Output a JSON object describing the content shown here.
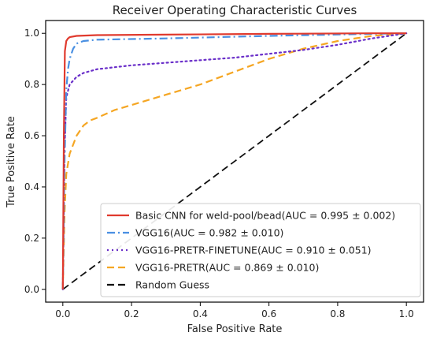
{
  "chart_data": {
    "type": "line",
    "title": "Receiver Operating Characteristic Curves",
    "xlabel": "False Positive Rate",
    "ylabel": "True Positive Rate",
    "xlim": [
      -0.05,
      1.05
    ],
    "ylim": [
      -0.05,
      1.05
    ],
    "xticks": [
      "0.0",
      "0.2",
      "0.4",
      "0.6",
      "0.8",
      "1.0"
    ],
    "yticks": [
      "0.0",
      "0.2",
      "0.4",
      "0.6",
      "0.8",
      "1.0"
    ],
    "legend_position": "lower-right",
    "series": [
      {
        "name": "Basic CNN for weld-pool/bead(AUC = 0.995 ± 0.002)",
        "color": "#e03a2e",
        "style": "solid",
        "x": [
          0,
          0.003,
          0.006,
          0.01,
          0.015,
          0.02,
          0.04,
          0.1,
          0.3,
          0.6,
          0.9,
          1.0
        ],
        "y": [
          0,
          0.6,
          0.93,
          0.97,
          0.98,
          0.985,
          0.99,
          0.993,
          0.995,
          0.998,
          1.0,
          1.0
        ]
      },
      {
        "name": "VGG16(AUC = 0.982 ± 0.010)",
        "color": "#4a90e2",
        "style": "dashdot",
        "x": [
          0,
          0.005,
          0.01,
          0.015,
          0.02,
          0.03,
          0.04,
          0.06,
          0.1,
          0.3,
          0.6,
          0.9,
          1.0
        ],
        "y": [
          0,
          0.5,
          0.78,
          0.86,
          0.9,
          0.94,
          0.96,
          0.97,
          0.975,
          0.98,
          0.99,
          0.998,
          1.0
        ]
      },
      {
        "name": "VGG16-PRETR-FINETUNE(AUC = 0.910 ± 0.051)",
        "color": "#6a2fc9",
        "style": "dotted",
        "x": [
          0,
          0.005,
          0.01,
          0.02,
          0.04,
          0.06,
          0.1,
          0.2,
          0.3,
          0.4,
          0.5,
          0.6,
          0.7,
          0.8,
          0.9,
          1.0
        ],
        "y": [
          0,
          0.55,
          0.75,
          0.8,
          0.83,
          0.845,
          0.86,
          0.875,
          0.885,
          0.895,
          0.905,
          0.92,
          0.935,
          0.955,
          0.98,
          1.0
        ]
      },
      {
        "name": "VGG16-PRETR(AUC = 0.869 ± 0.010)",
        "color": "#f5a623",
        "style": "dashed",
        "x": [
          0,
          0.005,
          0.01,
          0.02,
          0.04,
          0.06,
          0.08,
          0.1,
          0.15,
          0.2,
          0.3,
          0.4,
          0.5,
          0.6,
          0.7,
          0.8,
          0.9,
          1.0
        ],
        "y": [
          0,
          0.3,
          0.45,
          0.53,
          0.6,
          0.64,
          0.66,
          0.67,
          0.7,
          0.72,
          0.76,
          0.8,
          0.85,
          0.9,
          0.94,
          0.97,
          0.99,
          1.0
        ]
      },
      {
        "name": "Random Guess",
        "color": "#111111",
        "style": "dashed",
        "x": [
          0,
          1
        ],
        "y": [
          0,
          1
        ]
      }
    ]
  }
}
